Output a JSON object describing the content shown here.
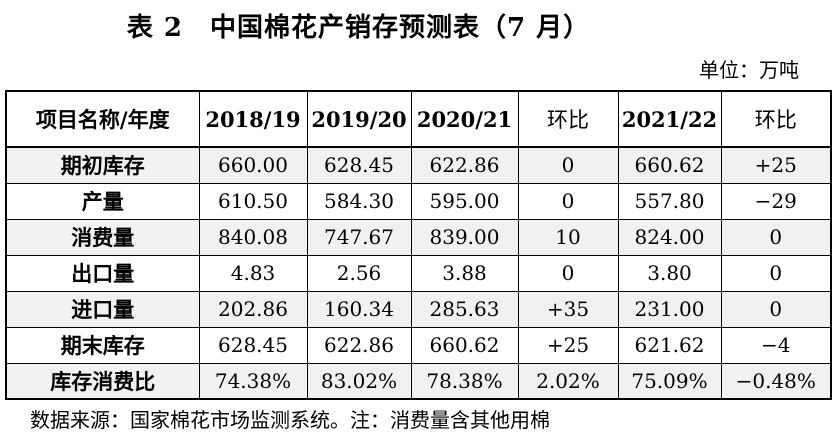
{
  "page": {
    "title": "表 2　中国棉花产销存预测表（7 月）",
    "unit_label": "单位：万吨",
    "footnote": "数据来源：国家棉花市场监测系统。注：消费量含其他用棉"
  },
  "table": {
    "columns": [
      "项目名称/年度",
      "2018/19",
      "2019/20",
      "2020/21",
      "环比",
      "2021/22",
      "环比"
    ],
    "rows": [
      {
        "label": "期初库存",
        "values": [
          "660.00",
          "628.45",
          "622.86",
          "0",
          "660.62",
          "+25"
        ]
      },
      {
        "label": "产量",
        "values": [
          "610.50",
          "584.30",
          "595.00",
          "0",
          "557.80",
          "−29"
        ]
      },
      {
        "label": "消费量",
        "values": [
          "840.08",
          "747.67",
          "839.00",
          "10",
          "824.00",
          "0"
        ]
      },
      {
        "label": "出口量",
        "values": [
          "4.83",
          "2.56",
          "3.88",
          "0",
          "3.80",
          "0"
        ]
      },
      {
        "label": "进口量",
        "values": [
          "202.86",
          "160.34",
          "285.63",
          "+35",
          "231.00",
          "0"
        ]
      },
      {
        "label": "期末库存",
        "values": [
          "628.45",
          "622.86",
          "660.62",
          "+25",
          "621.62",
          "−4"
        ]
      },
      {
        "label": "库存消费比",
        "values": [
          "74.38%",
          "83.02%",
          "78.38%",
          "2.02%",
          "75.09%",
          "−0.48%"
        ]
      }
    ],
    "colors": {
      "stripe_background": "#f1f1f1",
      "border": "#000000",
      "text": "#000000"
    }
  }
}
